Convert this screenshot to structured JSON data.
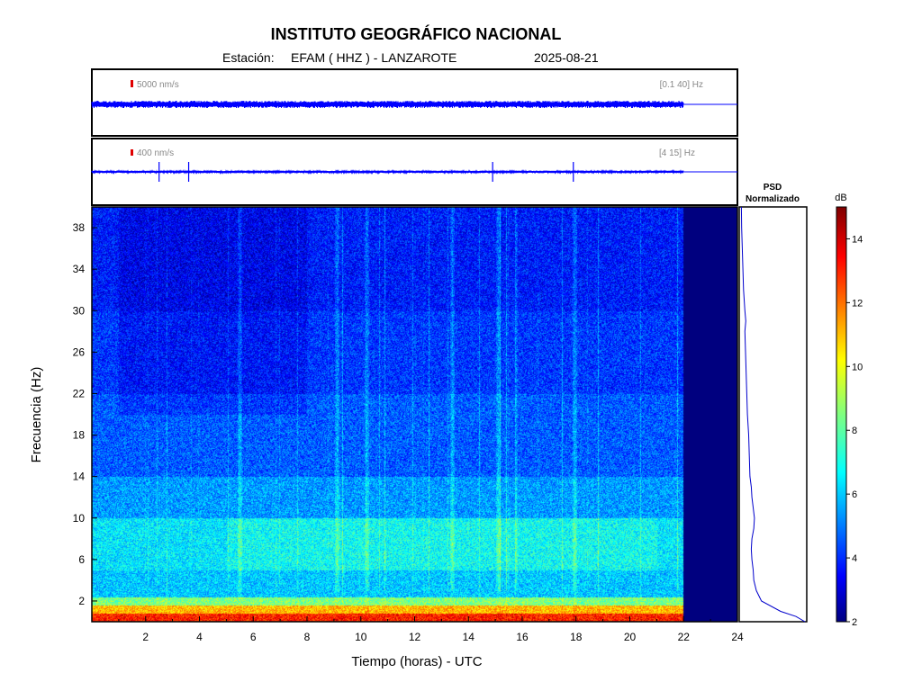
{
  "header": {
    "title": "INSTITUTO GEOGRÁFICO NACIONAL",
    "station_label": "Estación:",
    "station": "EFAM ( HHZ ) - LANZAROTE",
    "date": "2025-08-21"
  },
  "chart_data": [
    {
      "type": "line",
      "name": "seismogram-broadband",
      "amplitude_scale": "5000 nm/s",
      "filter": "[0.1 40] Hz",
      "x_range_hours": [
        0,
        24
      ],
      "data_end_hour": 22.0,
      "color": "#0000ff"
    },
    {
      "type": "line",
      "name": "seismogram-filtered",
      "amplitude_scale": "400 nm/s",
      "filter": "[4 15] Hz",
      "x_range_hours": [
        0,
        24
      ],
      "data_end_hour": 22.0,
      "color": "#0000ff",
      "spike_hours": [
        2.5,
        3.6,
        14.9,
        17.9
      ]
    },
    {
      "type": "heatmap",
      "name": "spectrogram",
      "xlabel": "Tiempo (horas) - UTC",
      "ylabel": "Frecuencia  (Hz)",
      "xlim": [
        0,
        24
      ],
      "ylim": [
        0,
        40
      ],
      "x_ticks": [
        2,
        4,
        6,
        8,
        10,
        12,
        14,
        16,
        18,
        20,
        22,
        24
      ],
      "y_ticks": [
        2,
        6,
        10,
        14,
        18,
        22,
        26,
        30,
        34,
        38
      ],
      "data_end_hour": 22.0,
      "colormap": "jet",
      "bands": [
        {
          "fmin": 0,
          "fmax": 0.8,
          "db": 13
        },
        {
          "fmin": 0.8,
          "fmax": 1.6,
          "db": 11
        },
        {
          "fmin": 1.6,
          "fmax": 2.4,
          "db": 8.5
        },
        {
          "fmin": 2.4,
          "fmax": 5,
          "db": 6.2
        },
        {
          "fmin": 5,
          "fmax": 10,
          "db": 6.6
        },
        {
          "fmin": 10,
          "fmax": 14,
          "db": 5.6
        },
        {
          "fmin": 14,
          "fmax": 22,
          "db": 4.8
        },
        {
          "fmin": 22,
          "fmax": 30,
          "db": 4.3
        },
        {
          "fmin": 30,
          "fmax": 40,
          "db": 3.9
        }
      ]
    },
    {
      "type": "line",
      "name": "psd-normalizado",
      "title": "PSD",
      "subtitle": "Normalizado",
      "freq_hz": [
        0,
        0.5,
        1,
        2,
        3,
        4,
        5,
        6,
        7,
        8,
        9,
        10,
        11,
        12,
        13,
        14,
        16,
        18,
        20,
        22,
        24,
        26,
        28,
        29,
        30,
        32,
        34,
        36,
        38,
        40
      ],
      "value": [
        1.0,
        0.86,
        0.62,
        0.32,
        0.24,
        0.2,
        0.19,
        0.17,
        0.16,
        0.17,
        0.2,
        0.21,
        0.19,
        0.17,
        0.16,
        0.14,
        0.13,
        0.12,
        0.1,
        0.09,
        0.08,
        0.07,
        0.06,
        0.075,
        0.06,
        0.04,
        0.03,
        0.02,
        0.01,
        0.005
      ],
      "color": "#0000cc"
    },
    {
      "type": "heatmap",
      "name": "colorbar",
      "label": "dB",
      "range": [
        2,
        15
      ],
      "ticks": [
        2,
        4,
        6,
        8,
        10,
        12,
        14
      ]
    }
  ]
}
